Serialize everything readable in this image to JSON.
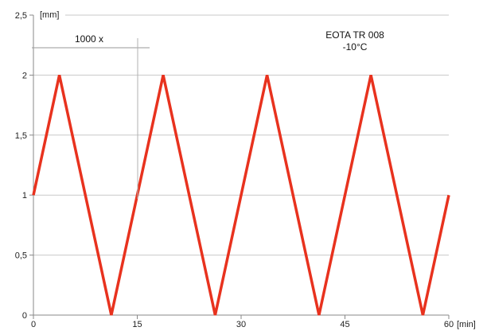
{
  "chart_data": {
    "type": "line",
    "x_unit": "[min]",
    "y_unit": "[mm]",
    "x_ticks": [
      0,
      15,
      30,
      45,
      60
    ],
    "y_ticks": [
      "0",
      "0,5",
      "1",
      "1,5",
      "2",
      "2,5"
    ],
    "y_tick_values": [
      0,
      0.5,
      1,
      1.5,
      2,
      2.5
    ],
    "xlim": [
      0,
      60
    ],
    "ylim": [
      0,
      2.5
    ],
    "grid": "horizontal",
    "annotations": {
      "scale": "1000 x",
      "standard": "EOTA TR 008",
      "temperature": "-10°C"
    },
    "series": [
      {
        "color": "#e8321e",
        "x": [
          0,
          3.75,
          11.25,
          18.75,
          26.25,
          33.75,
          41.25,
          48.75,
          56.25,
          60
        ],
        "y": [
          1,
          2,
          0,
          2,
          0,
          2,
          0,
          2,
          0,
          1
        ]
      }
    ]
  }
}
